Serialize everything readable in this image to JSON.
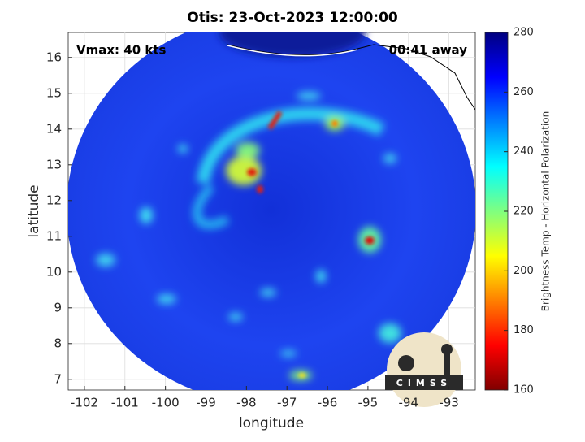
{
  "chart_data": {
    "type": "map",
    "title": "Otis: 23-Oct-2023 12:00:00",
    "xlabel": "longitude",
    "ylabel": "latitude",
    "xlim": [
      -102.4,
      -92.35
    ],
    "ylim": [
      6.7,
      16.7
    ],
    "xticks": [
      -102,
      -101,
      -100,
      -99,
      -98,
      -97,
      -96,
      -95,
      -94,
      -93
    ],
    "yticks": [
      7,
      8,
      9,
      10,
      11,
      12,
      13,
      14,
      15,
      16
    ],
    "grid": true,
    "annotations": [
      "Vmax: 40 kts",
      "00:41 away"
    ],
    "colorbar": {
      "label": "Brightness Temp - Horizontal Polarization",
      "clim": [
        160,
        280
      ],
      "ticks": [
        160,
        180,
        200,
        220,
        240,
        260,
        280
      ],
      "colormap": "jet"
    }
  },
  "logo": {
    "text": "CIMSS"
  }
}
